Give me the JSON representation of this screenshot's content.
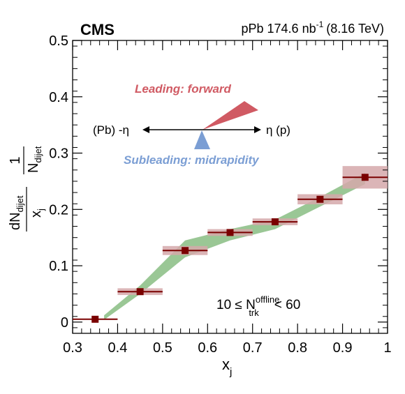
{
  "chart_data": {
    "type": "scatter",
    "experiment": "CMS",
    "dataset_label": {
      "main": "pPb 174.6 nb",
      "sup": "-1",
      "energy": "(8.16 TeV)"
    },
    "xlabel": {
      "main": "x",
      "sub": "j"
    },
    "ylabel": {
      "one": "1",
      "n": "N",
      "n_sub": "dijet",
      "dn": "dN",
      "dn_sub": "dijet",
      "xj": "x",
      "xj_sub": "j"
    },
    "xlim": [
      0.3,
      1.0
    ],
    "ylim": [
      -0.02,
      0.5
    ],
    "x_ticks": [
      0.3,
      0.4,
      0.5,
      0.6,
      0.7,
      0.8,
      0.9,
      1.0
    ],
    "x_tick_labels": [
      "0.3",
      "0.4",
      "0.5",
      "0.6",
      "0.7",
      "0.8",
      "0.9",
      "1"
    ],
    "y_ticks": [
      0,
      0.1,
      0.2,
      0.3,
      0.4,
      0.5
    ],
    "y_tick_labels": [
      "0",
      "0.1",
      "0.2",
      "0.3",
      "0.4",
      "0.5"
    ],
    "grid": false,
    "series": [
      {
        "x": [
          0.35,
          0.45,
          0.55,
          0.65,
          0.75,
          0.85,
          0.95
        ],
        "y": [
          0.005,
          0.054,
          0.127,
          0.159,
          0.178,
          0.218,
          0.257
        ],
        "x_low": [
          0.3,
          0.4,
          0.5,
          0.6,
          0.7,
          0.8,
          0.9
        ],
        "x_high": [
          0.4,
          0.5,
          0.6,
          0.7,
          0.8,
          0.9,
          1.0
        ],
        "sys_unc": [
          0.0,
          0.006,
          0.008,
          0.006,
          0.006,
          0.009,
          0.02
        ],
        "color": "#7a0000",
        "box_color": "#d5a8aa"
      }
    ],
    "theory_band": {
      "x": [
        0.37,
        0.45,
        0.55,
        0.65,
        0.75,
        0.85,
        0.95
      ],
      "low": [
        0.004,
        0.05,
        0.115,
        0.145,
        0.165,
        0.205,
        0.245
      ],
      "high": [
        0.012,
        0.065,
        0.145,
        0.165,
        0.182,
        0.222,
        0.265
      ],
      "color": "#8fc189"
    },
    "annotations": {
      "leading": "Leading: forward",
      "leading_color": "#d05a63",
      "subleading": "Subleading: midrapidity",
      "subleading_color": "#7b9ed4",
      "left_arrow": "(Pb) -η",
      "right_arrow": "η (p)",
      "condition": {
        "pre": "10 ≤ N",
        "sup": "offline",
        "sub": "trk",
        "post": "< 60"
      }
    }
  }
}
